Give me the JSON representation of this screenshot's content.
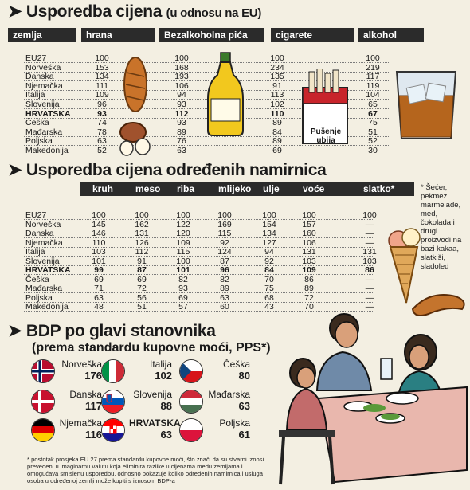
{
  "chart_data": [
    {
      "type": "table",
      "title": "Usporedba cijena",
      "subtitle": "(u odnosu na EU)",
      "columns": [
        "zemlja",
        "hrana",
        "Bezalkoholna pića",
        "cigarete",
        "alkohol"
      ],
      "rows": [
        {
          "country": "EU27",
          "values": [
            100,
            100,
            100,
            100
          ]
        },
        {
          "country": "Norveška",
          "values": [
            153,
            168,
            234,
            219
          ]
        },
        {
          "country": "Danska",
          "values": [
            134,
            193,
            135,
            117
          ]
        },
        {
          "country": "Njemačka",
          "values": [
            111,
            106,
            91,
            119
          ]
        },
        {
          "country": "Italija",
          "values": [
            109,
            94,
            113,
            104
          ]
        },
        {
          "country": "Slovenija",
          "values": [
            96,
            93,
            102,
            65
          ]
        },
        {
          "country": "HRVATSKA",
          "values": [
            93,
            112,
            110,
            67
          ],
          "bold": true
        },
        {
          "country": "Češka",
          "values": [
            74,
            93,
            89,
            75
          ]
        },
        {
          "country": "Mađarska",
          "values": [
            78,
            89,
            84,
            51
          ]
        },
        {
          "country": "Poljska",
          "values": [
            63,
            76,
            89,
            52
          ]
        },
        {
          "country": "Makedonija",
          "values": [
            52,
            63,
            69,
            30
          ]
        }
      ]
    },
    {
      "type": "table",
      "title": "Usporedba cijena određenih namirnica",
      "columns": [
        "kruh",
        "meso",
        "riba",
        "mlijeko",
        "ulje",
        "voće",
        "slatko*"
      ],
      "rows": [
        {
          "country": "EU27",
          "values": [
            "100",
            "100",
            "100",
            "100",
            "100",
            "100",
            "100"
          ]
        },
        {
          "country": "Norveška",
          "values": [
            "145",
            "162",
            "122",
            "169",
            "154",
            "157",
            "—"
          ]
        },
        {
          "country": "Danska",
          "values": [
            "146",
            "131",
            "120",
            "115",
            "134",
            "160",
            "—"
          ]
        },
        {
          "country": "Njemačka",
          "values": [
            "110",
            "126",
            "109",
            "92",
            "127",
            "106",
            "—"
          ]
        },
        {
          "country": "Italija",
          "values": [
            "103",
            "112",
            "115",
            "124",
            "94",
            "131",
            "131"
          ]
        },
        {
          "country": "Slovenija",
          "values": [
            "101",
            "91",
            "100",
            "87",
            "92",
            "103",
            "103"
          ]
        },
        {
          "country": "HRVATSKA",
          "values": [
            "99",
            "87",
            "101",
            "96",
            "84",
            "109",
            "86"
          ],
          "bold": true
        },
        {
          "country": "Češka",
          "values": [
            "69",
            "69",
            "82",
            "82",
            "70",
            "86",
            "—"
          ]
        },
        {
          "country": "Mađarska",
          "values": [
            "71",
            "72",
            "93",
            "89",
            "75",
            "89",
            "—"
          ]
        },
        {
          "country": "Poljska",
          "values": [
            "63",
            "56",
            "69",
            "63",
            "68",
            "72",
            "—"
          ]
        },
        {
          "country": "Makedonija",
          "values": [
            "48",
            "51",
            "57",
            "60",
            "43",
            "70",
            "—"
          ]
        }
      ]
    },
    {
      "type": "table",
      "title": "BDP po glavi stanovnika",
      "subtitle": "(prema standardu kupovne moći, PPS*)",
      "entries": [
        {
          "country": "Norveška",
          "value": 176,
          "flag": "norway-flag"
        },
        {
          "country": "Italija",
          "value": 102,
          "flag": "italy-flag"
        },
        {
          "country": "Češka",
          "value": 80,
          "flag": "czech-flag"
        },
        {
          "country": "Danska",
          "value": 117,
          "flag": "denmark-flag"
        },
        {
          "country": "Slovenija",
          "value": 88,
          "flag": "slovenia-flag"
        },
        {
          "country": "Mađarska",
          "value": 63,
          "flag": "hungary-flag"
        },
        {
          "country": "Njemačka",
          "value": 116,
          "flag": "germany-flag"
        },
        {
          "country": "HRVATSKA",
          "value": 63,
          "flag": "croatia-flag",
          "bold": true
        },
        {
          "country": "Poljska",
          "value": 61,
          "flag": "poland-flag"
        }
      ]
    }
  ],
  "notes": {
    "sweets": "* Šećer, pekmez, marmelade, med, čokolada i drugi proizvodi na bazi kakaa, slatkiši, sladoled",
    "cigarette_pack": "Pušenje ubija",
    "footnote": "* postotak prosjeka EU 27 prema standardu kupovne moći, što znači da su stvarni iznosi prevedeni u imaginarnu valutu koja eliminira razlike u cijenama među zemljama i omogućava smislenu usporedbu, odnosno pokazuje koliko određenih namirnica i usluga osoba u određenoj zemlji može kupiti s iznosom BDP-a"
  },
  "colors": {
    "header_bg": "#2b2b2b",
    "background": "#f3efe2"
  }
}
